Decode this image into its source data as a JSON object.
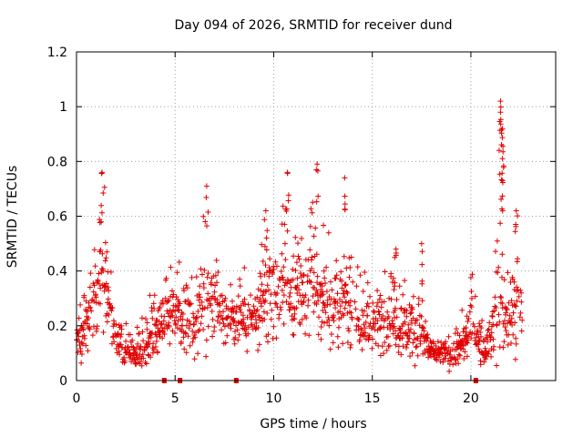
{
  "chart_data": {
    "type": "scatter",
    "title": "Day 094 of 2026, SRMTID for receiver dund",
    "xlabel": "GPS time / hours",
    "ylabel": "SRMTID / TECUs",
    "xlim": [
      0,
      24.3
    ],
    "ylim": [
      0,
      1.2
    ],
    "x_ticks": [
      0,
      5,
      10,
      15,
      20
    ],
    "x_tick_labels": [
      "0",
      "5",
      "10",
      "15",
      "20"
    ],
    "y_ticks": [
      0,
      0.2,
      0.4,
      0.6,
      0.8,
      1.0,
      1.2
    ],
    "y_tick_labels": [
      "0",
      "0.2",
      "0.4",
      "0.6",
      "0.8",
      "1",
      "1.2"
    ],
    "grid": true,
    "marker": "+",
    "color": "#e00000",
    "gap_markers_x": [
      4.45,
      5.25,
      8.1,
      20.25
    ],
    "envelope": {
      "x": [
        0,
        0.5,
        1.0,
        1.3,
        1.6,
        2.0,
        2.5,
        3.0,
        3.5,
        4.0,
        4.5,
        5.0,
        5.5,
        6.0,
        6.5,
        7.0,
        7.5,
        8.0,
        8.5,
        9.0,
        9.5,
        10.0,
        10.5,
        11.0,
        11.5,
        12.0,
        12.5,
        13.0,
        13.5,
        14.0,
        14.5,
        15.0,
        15.5,
        16.0,
        16.5,
        17.0,
        17.5,
        18.0,
        18.5,
        19.0,
        19.5,
        20.0,
        20.5,
        21.0,
        21.4,
        21.8,
        22.2,
        22.6
      ],
      "median": [
        0.14,
        0.2,
        0.3,
        0.42,
        0.3,
        0.14,
        0.12,
        0.1,
        0.13,
        0.18,
        0.25,
        0.25,
        0.22,
        0.18,
        0.3,
        0.3,
        0.24,
        0.22,
        0.23,
        0.22,
        0.28,
        0.33,
        0.34,
        0.3,
        0.33,
        0.38,
        0.3,
        0.27,
        0.28,
        0.24,
        0.2,
        0.22,
        0.22,
        0.25,
        0.2,
        0.2,
        0.17,
        0.1,
        0.1,
        0.1,
        0.12,
        0.22,
        0.12,
        0.14,
        0.35,
        0.2,
        0.27,
        0.3
      ],
      "spread": [
        0.06,
        0.09,
        0.14,
        0.2,
        0.13,
        0.05,
        0.05,
        0.05,
        0.08,
        0.08,
        0.09,
        0.1,
        0.11,
        0.09,
        0.18,
        0.12,
        0.1,
        0.08,
        0.1,
        0.09,
        0.14,
        0.18,
        0.17,
        0.12,
        0.15,
        0.18,
        0.14,
        0.12,
        0.15,
        0.1,
        0.1,
        0.1,
        0.1,
        0.12,
        0.11,
        0.1,
        0.11,
        0.04,
        0.04,
        0.05,
        0.06,
        0.1,
        0.05,
        0.06,
        0.27,
        0.1,
        0.14,
        0.12
      ]
    },
    "peaks": [
      {
        "x": 1.3,
        "y": 0.76
      },
      {
        "x": 6.6,
        "y": 0.71
      },
      {
        "x": 9.6,
        "y": 0.62
      },
      {
        "x": 10.7,
        "y": 0.76
      },
      {
        "x": 12.2,
        "y": 0.79
      },
      {
        "x": 13.6,
        "y": 0.74
      },
      {
        "x": 21.5,
        "y": 1.02
      },
      {
        "x": 21.5,
        "y": 0.98
      },
      {
        "x": 21.6,
        "y": 0.92
      },
      {
        "x": 21.6,
        "y": 0.81
      },
      {
        "x": 21.6,
        "y": 0.73
      },
      {
        "x": 22.3,
        "y": 0.62
      },
      {
        "x": 17.5,
        "y": 0.5
      },
      {
        "x": 16.2,
        "y": 0.48
      }
    ]
  }
}
